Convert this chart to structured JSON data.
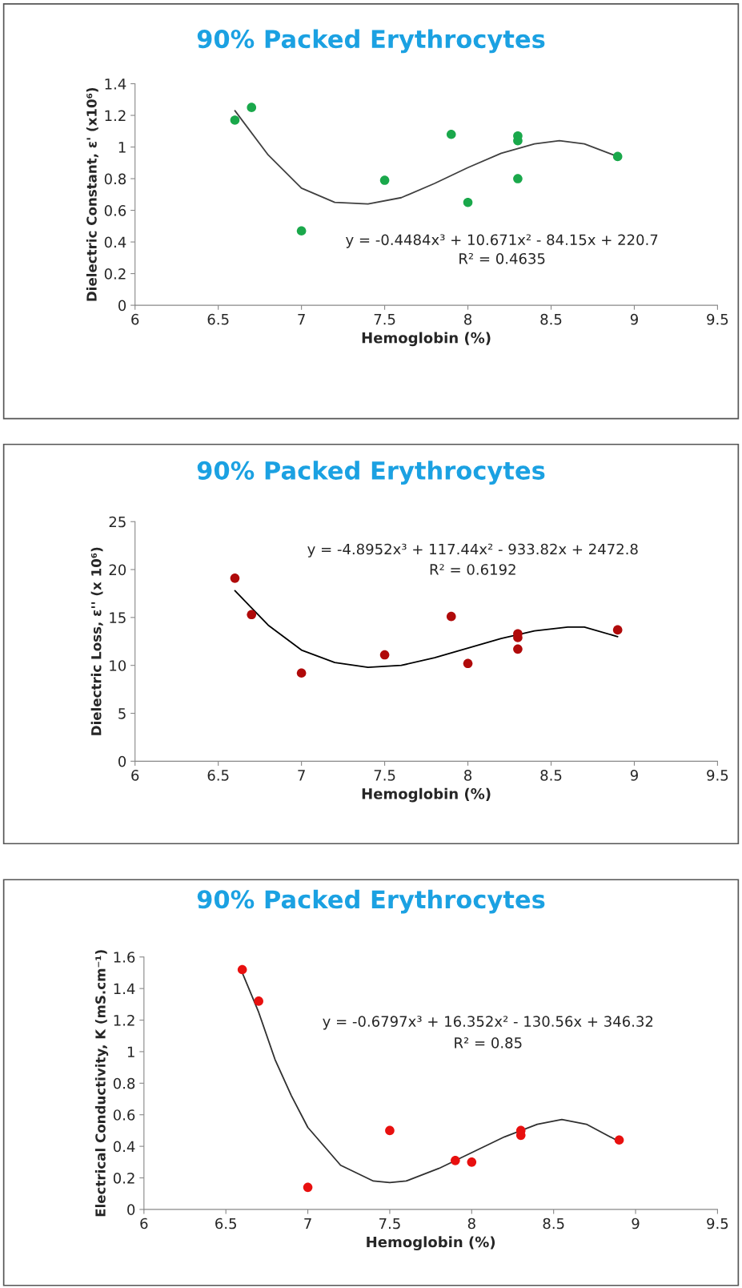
{
  "chart_data": [
    {
      "type": "scatter",
      "title": "90% Packed Erythrocytes",
      "xlabel": "Hemoglobin (%)",
      "ylabel": "Dielectric Constant, ε' (x10⁶)",
      "xlim": [
        6,
        9.5
      ],
      "xticks": [
        6,
        6.5,
        7,
        7.5,
        8,
        8.5,
        9,
        9.5
      ],
      "ylim": [
        0,
        1.4
      ],
      "yticks": [
        0,
        0.2,
        0.4,
        0.6,
        0.8,
        1,
        1.2,
        1.4
      ],
      "grid": false,
      "annotations": [
        "y = -0.4484x³ + 10.671x² - 84.15x + 220.7",
        "R² = 0.4635"
      ],
      "series": [
        {
          "marker": "circle",
          "color": "#1aa84b",
          "x": [
            6.6,
            6.7,
            7,
            7.5,
            7.9,
            8,
            8.3,
            8.3,
            8.3,
            8.9
          ],
          "values": [
            1.17,
            1.25,
            0.47,
            0.79,
            1.08,
            0.65,
            1.07,
            1.04,
            0.8,
            0.94
          ]
        },
        {
          "type": "line",
          "marker": "none",
          "color": "#404040",
          "x": [
            6.6,
            6.8,
            7.0,
            7.2,
            7.4,
            7.6,
            7.8,
            8.0,
            8.2,
            8.4,
            8.55,
            8.7,
            8.9
          ],
          "values": [
            1.23,
            0.95,
            0.74,
            0.65,
            0.64,
            0.68,
            0.77,
            0.87,
            0.96,
            1.02,
            1.04,
            1.02,
            0.94
          ]
        }
      ]
    },
    {
      "type": "scatter",
      "title": "90% Packed Erythrocytes",
      "xlabel": "Hemoglobin (%)",
      "ylabel": "Dielectric Loss, ε'' (x 10⁶)",
      "xlim": [
        6,
        9.5
      ],
      "xticks": [
        6,
        6.5,
        7,
        7.5,
        8,
        8.5,
        9,
        9.5
      ],
      "ylim": [
        0,
        25
      ],
      "yticks": [
        0,
        5,
        10,
        15,
        20,
        25
      ],
      "grid": false,
      "annotations": [
        "y = -4.8952x³ + 117.44x² - 933.82x + 2472.8",
        "R² = 0.6192"
      ],
      "series": [
        {
          "marker": "circle",
          "color": "#b00a0a",
          "x": [
            6.6,
            6.7,
            7,
            7.5,
            7.9,
            8,
            8.3,
            8.3,
            8.3,
            8.9
          ],
          "values": [
            19.1,
            15.3,
            9.2,
            11.1,
            15.1,
            10.2,
            13.3,
            12.9,
            11.7,
            13.7
          ]
        },
        {
          "type": "line",
          "marker": "none",
          "color": "#000000",
          "x": [
            6.6,
            6.8,
            7.0,
            7.2,
            7.4,
            7.6,
            7.8,
            8.0,
            8.2,
            8.4,
            8.6,
            8.7,
            8.9
          ],
          "values": [
            17.8,
            14.2,
            11.6,
            10.3,
            9.8,
            10.0,
            10.8,
            11.8,
            12.8,
            13.6,
            14.0,
            14.0,
            13.0
          ]
        }
      ]
    },
    {
      "type": "scatter",
      "title": "90% Packed Erythrocytes",
      "xlabel": "Hemoglobin (%)",
      "ylabel": "Electrical Conductivity, K (mS.cm⁻¹)",
      "xlim": [
        6,
        9.5
      ],
      "xticks": [
        6,
        6.5,
        7,
        7.5,
        8,
        8.5,
        9,
        9.5
      ],
      "ylim": [
        0,
        1.6
      ],
      "yticks": [
        0,
        0.2,
        0.4,
        0.6,
        0.8,
        1,
        1.2,
        1.4,
        1.6
      ],
      "grid": false,
      "annotations": [
        "y = -0.6797x³ + 16.352x² - 130.56x + 346.32",
        "R² = 0.85"
      ],
      "series": [
        {
          "marker": "circle",
          "color": "#e8100f",
          "x": [
            6.6,
            6.7,
            7,
            7.5,
            7.9,
            8,
            8.3,
            8.3,
            8.9
          ],
          "values": [
            1.52,
            1.32,
            0.14,
            0.5,
            0.31,
            0.3,
            0.5,
            0.47,
            0.44
          ]
        },
        {
          "type": "line",
          "marker": "none",
          "color": "#303030",
          "x": [
            6.6,
            6.7,
            6.8,
            6.9,
            7.0,
            7.2,
            7.4,
            7.5,
            7.6,
            7.8,
            8.0,
            8.2,
            8.4,
            8.55,
            8.7,
            8.9
          ],
          "values": [
            1.5,
            1.25,
            0.95,
            0.72,
            0.52,
            0.28,
            0.18,
            0.17,
            0.18,
            0.26,
            0.36,
            0.46,
            0.54,
            0.57,
            0.54,
            0.43
          ]
        }
      ]
    }
  ]
}
